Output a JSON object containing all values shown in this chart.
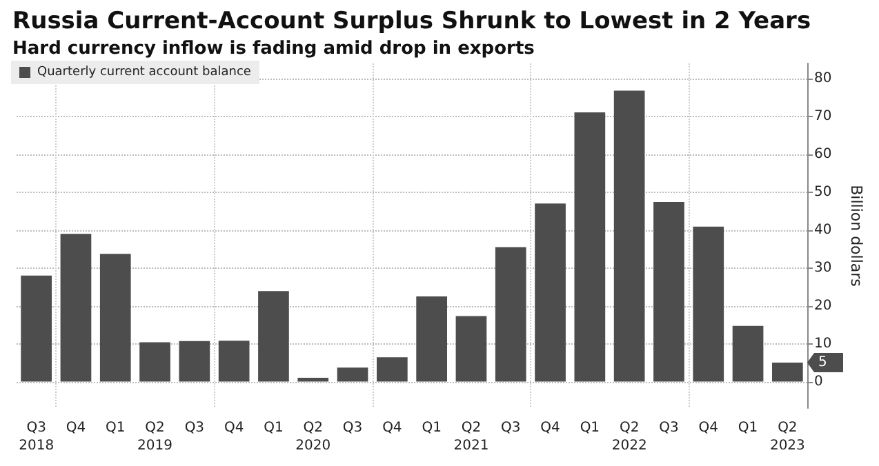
{
  "chart_data": {
    "type": "bar",
    "title": "Russia Current-Account Surplus Shrunk to Lowest in 2 Years",
    "subtitle": "Hard currency inflow is fading amid drop in exports",
    "ylabel": "Billion dollars",
    "categories": [
      "Q3\n2018",
      "Q4",
      "Q1",
      "Q2\n2019",
      "Q3",
      "Q4",
      "Q1",
      "Q2\n2020",
      "Q3",
      "Q4",
      "Q1",
      "Q2\n2021",
      "Q3",
      "Q4",
      "Q1",
      "Q2\n2022",
      "Q3",
      "Q4",
      "Q1",
      "Q2\n2023"
    ],
    "series": [
      {
        "name": "Quarterly current account balance",
        "color": "#4d4d4d",
        "values": [
          28,
          39,
          33.7,
          10.4,
          10.7,
          10.8,
          23.9,
          1,
          3.7,
          6.4,
          22.5,
          17.3,
          35.5,
          47,
          71.1,
          76.8,
          47.4,
          40.9,
          14.7,
          5
        ]
      }
    ],
    "annotations": [
      {
        "text": "5",
        "y": 5
      }
    ],
    "ylim": [
      -7,
      84
    ],
    "yticks": [
      0,
      10,
      20,
      30,
      40,
      50,
      60,
      70,
      80
    ],
    "grid": true,
    "legend": "top left"
  }
}
